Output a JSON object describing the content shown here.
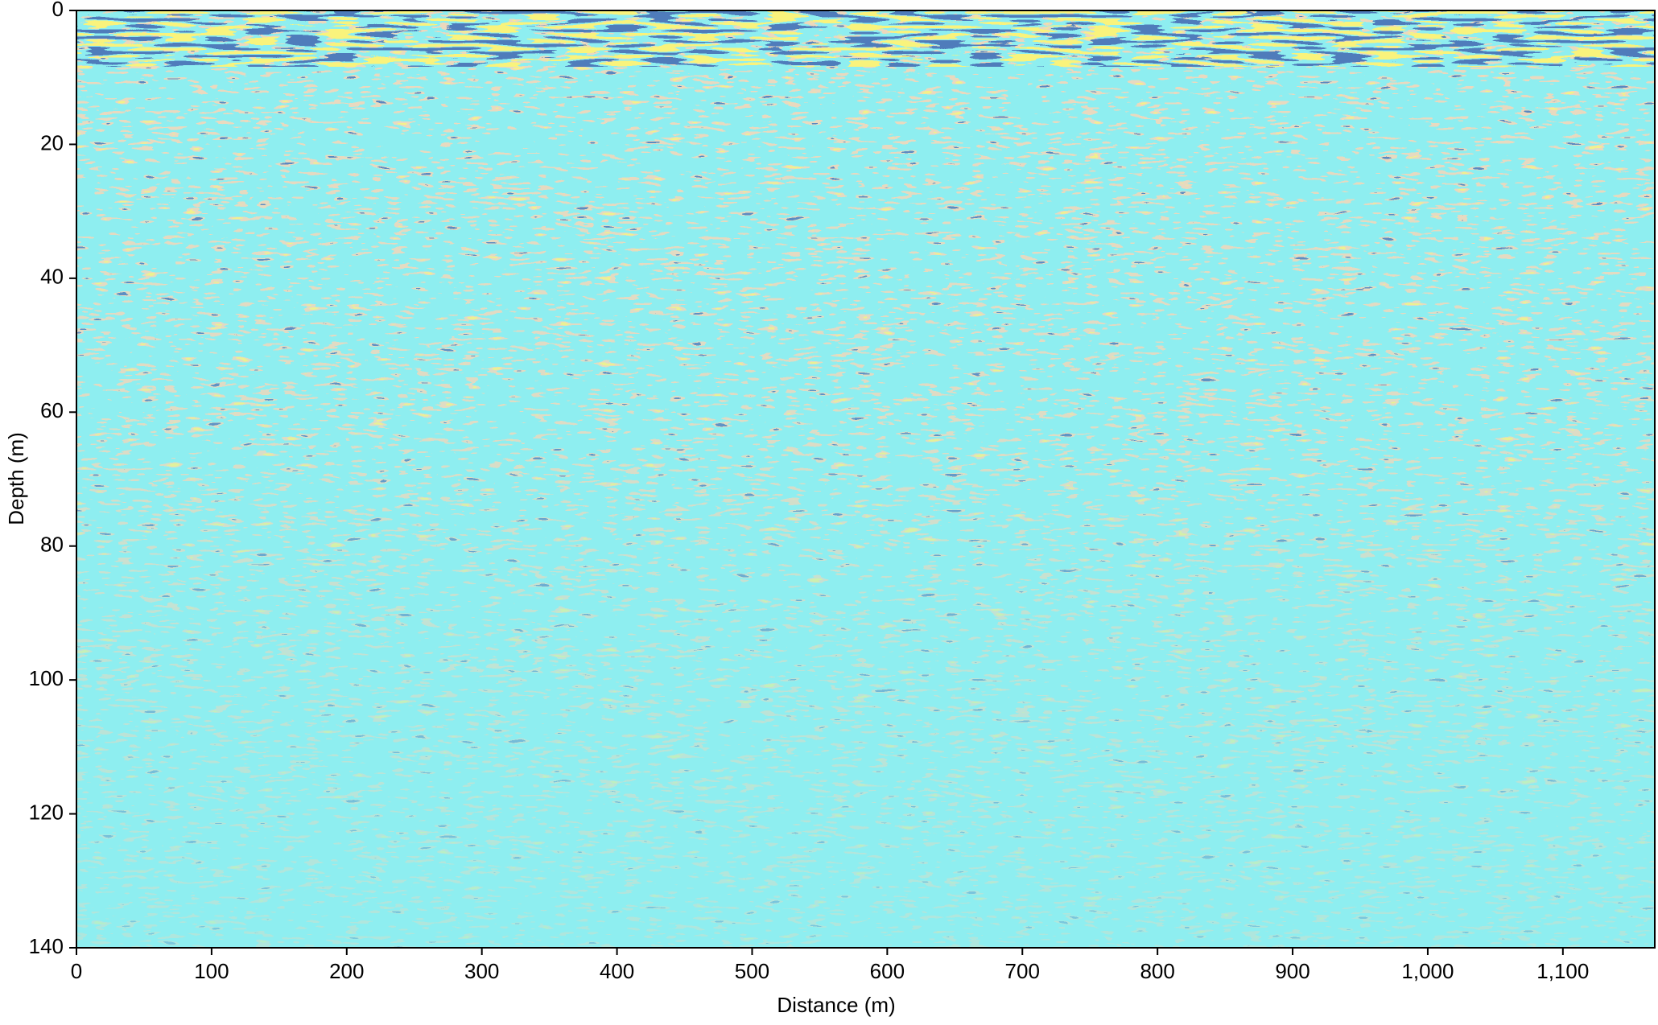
{
  "chart_data": {
    "type": "image",
    "xlabel": "Distance (m)",
    "ylabel": "Depth (m)",
    "xlim": [
      0,
      1168
    ],
    "ylim": [
      0,
      140
    ],
    "y_inverted": true,
    "xticks": [
      0,
      100,
      200,
      300,
      400,
      500,
      600,
      700,
      800,
      900,
      {
        "value": 1000,
        "label": "1,000"
      },
      {
        "value": 1100,
        "label": "1,100"
      }
    ],
    "yticks": [
      0,
      20,
      40,
      60,
      80,
      100,
      120,
      140
    ]
  }
}
